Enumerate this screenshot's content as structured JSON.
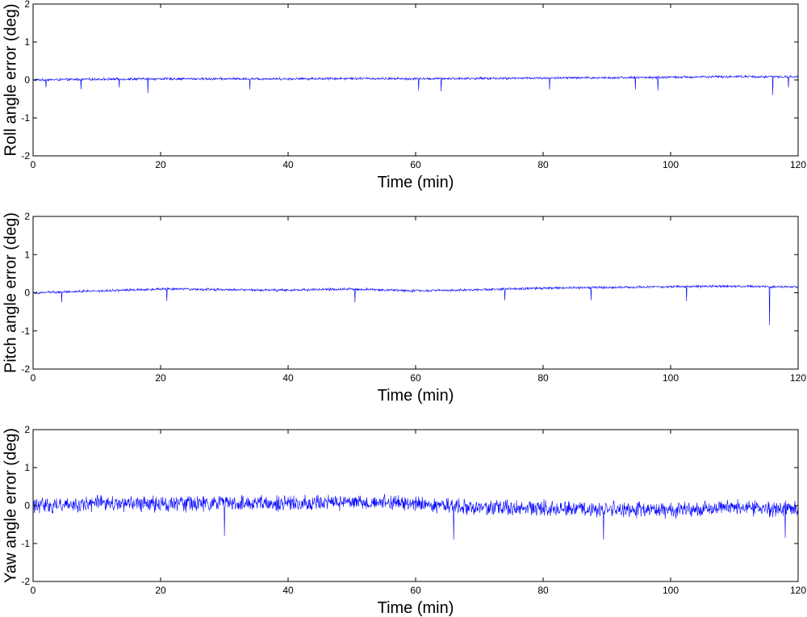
{
  "chart_data": [
    {
      "type": "line",
      "title": "",
      "xlabel": "Time (min)",
      "ylabel": "Roll angle error (deg)",
      "xlim": [
        0,
        120
      ],
      "ylim": [
        -2,
        2
      ],
      "xticks": [
        0,
        20,
        40,
        60,
        80,
        100,
        120
      ],
      "yticks": [
        -2,
        -1,
        0,
        1,
        2
      ],
      "grid": false,
      "series_color": "#0000ff",
      "trend": {
        "x": [
          0,
          10,
          20,
          30,
          40,
          50,
          60,
          70,
          80,
          90,
          100,
          110,
          120
        ],
        "y": [
          0.0,
          0.02,
          0.03,
          0.03,
          0.03,
          0.04,
          0.03,
          0.04,
          0.05,
          0.06,
          0.07,
          0.09,
          0.08
        ]
      },
      "noise_amplitude": 0.04,
      "spikes": [
        {
          "x": 2.0,
          "y": -0.2
        },
        {
          "x": 7.5,
          "y": -0.25
        },
        {
          "x": 13.5,
          "y": -0.2
        },
        {
          "x": 18.0,
          "y": -0.35
        },
        {
          "x": 34.0,
          "y": -0.25
        },
        {
          "x": 60.5,
          "y": -0.28
        },
        {
          "x": 64.0,
          "y": -0.3
        },
        {
          "x": 81.0,
          "y": -0.25
        },
        {
          "x": 94.5,
          "y": -0.25
        },
        {
          "x": 98.0,
          "y": -0.28
        },
        {
          "x": 116.0,
          "y": -0.4
        },
        {
          "x": 118.5,
          "y": -0.2
        }
      ]
    },
    {
      "type": "line",
      "title": "",
      "xlabel": "Time (min)",
      "ylabel": "Pitch angle error (deg)",
      "xlim": [
        0,
        120
      ],
      "ylim": [
        -2,
        2
      ],
      "xticks": [
        0,
        20,
        40,
        60,
        80,
        100,
        120
      ],
      "yticks": [
        -2,
        -1,
        0,
        1,
        2
      ],
      "grid": false,
      "series_color": "#0000ff",
      "trend": {
        "x": [
          0,
          10,
          20,
          30,
          40,
          50,
          60,
          70,
          80,
          90,
          100,
          110,
          120
        ],
        "y": [
          0.0,
          0.05,
          0.1,
          0.08,
          0.07,
          0.1,
          0.05,
          0.08,
          0.12,
          0.14,
          0.16,
          0.17,
          0.15
        ]
      },
      "noise_amplitude": 0.04,
      "spikes": [
        {
          "x": 4.5,
          "y": -0.25
        },
        {
          "x": 21.0,
          "y": -0.22
        },
        {
          "x": 50.5,
          "y": -0.25
        },
        {
          "x": 74.0,
          "y": -0.2
        },
        {
          "x": 87.5,
          "y": -0.2
        },
        {
          "x": 102.5,
          "y": -0.22
        },
        {
          "x": 115.5,
          "y": -0.85
        }
      ]
    },
    {
      "type": "line",
      "title": "",
      "xlabel": "Time (min)",
      "ylabel": "Yaw angle error (deg)",
      "xlim": [
        0,
        120
      ],
      "ylim": [
        -2,
        2
      ],
      "xticks": [
        0,
        20,
        40,
        60,
        80,
        100,
        120
      ],
      "yticks": [
        -2,
        -1,
        0,
        1,
        2
      ],
      "grid": false,
      "series_color": "#0000ff",
      "trend": {
        "x": [
          0,
          10,
          20,
          30,
          40,
          50,
          60,
          70,
          80,
          90,
          100,
          110,
          120
        ],
        "y": [
          0.0,
          0.05,
          0.05,
          0.05,
          0.05,
          0.1,
          0.05,
          -0.05,
          -0.08,
          -0.1,
          -0.12,
          -0.05,
          -0.1
        ]
      },
      "noise_amplitude": 0.25,
      "spikes": [
        {
          "x": 30.0,
          "y": -0.8
        },
        {
          "x": 66.0,
          "y": -0.9
        },
        {
          "x": 89.5,
          "y": -0.9
        },
        {
          "x": 118.0,
          "y": -0.85
        }
      ]
    }
  ]
}
